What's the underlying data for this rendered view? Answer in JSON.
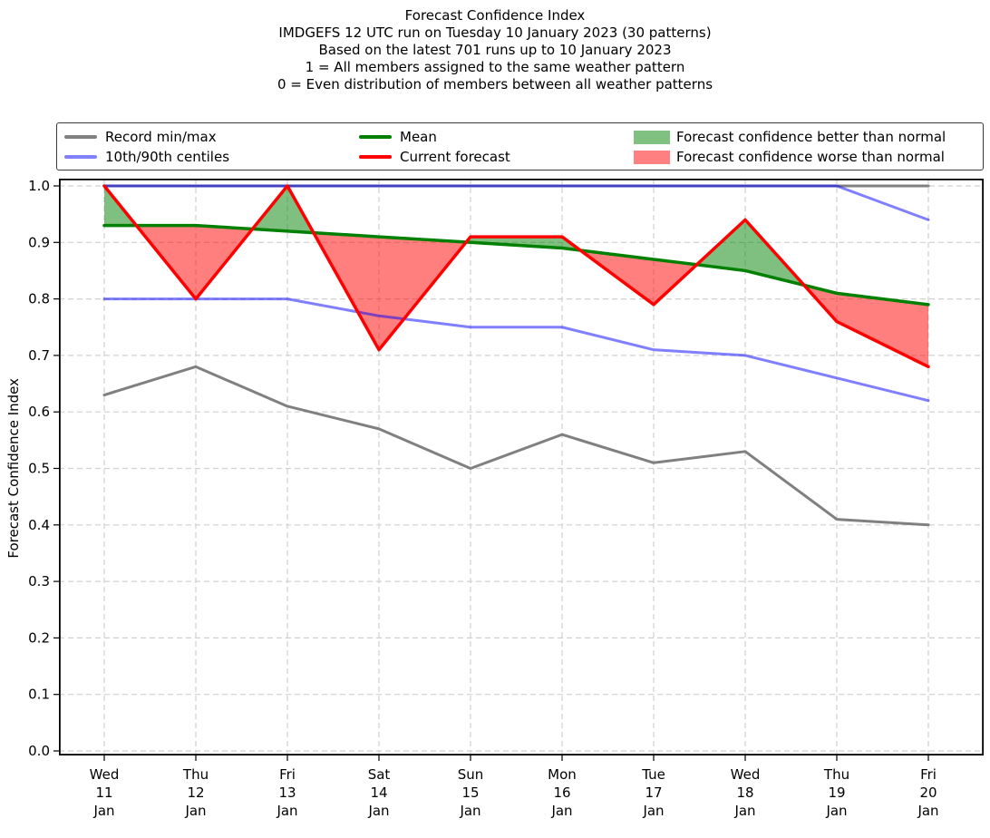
{
  "title": {
    "lines": [
      "Forecast Confidence Index",
      "IMDGEFS 12 UTC run on Tuesday 10 January 2023 (30 patterns)",
      "Based on the latest 701 runs up to 10 January 2023",
      "1 = All members assigned to the same weather pattern",
      "0 = Even distribution of members between all weather patterns"
    ]
  },
  "legend": {
    "entries": [
      {
        "label": "Record min/max",
        "swatch": "line",
        "color": "#808080"
      },
      {
        "label": "10th/90th centiles",
        "swatch": "line",
        "color": "#8080ff"
      },
      {
        "label": "Mean",
        "swatch": "line",
        "color": "#008000"
      },
      {
        "label": "Current forecast",
        "swatch": "line",
        "color": "#ff0000"
      },
      {
        "label": "Forecast confidence better than normal",
        "swatch": "patch",
        "color": "#80c080"
      },
      {
        "label": "Forecast confidence worse than normal",
        "swatch": "patch",
        "color": "#ff8080"
      }
    ]
  },
  "chart_data": {
    "type": "line",
    "title": "Forecast Confidence Index",
    "xlabel": "",
    "ylabel": "Forecast Confidence Index",
    "ylim": [
      0.0,
      1.0
    ],
    "yticks": [
      "0.0",
      "0.1",
      "0.2",
      "0.3",
      "0.4",
      "0.5",
      "0.6",
      "0.7",
      "0.8",
      "0.9",
      "1.0"
    ],
    "grid": true,
    "legend_position": "top",
    "categories": [
      {
        "weekday": "Wed",
        "day": "11",
        "month": "Jan"
      },
      {
        "weekday": "Thu",
        "day": "12",
        "month": "Jan"
      },
      {
        "weekday": "Fri",
        "day": "13",
        "month": "Jan"
      },
      {
        "weekday": "Sat",
        "day": "14",
        "month": "Jan"
      },
      {
        "weekday": "Sun",
        "day": "15",
        "month": "Jan"
      },
      {
        "weekday": "Mon",
        "day": "16",
        "month": "Jan"
      },
      {
        "weekday": "Tue",
        "day": "17",
        "month": "Jan"
      },
      {
        "weekday": "Wed",
        "day": "18",
        "month": "Jan"
      },
      {
        "weekday": "Thu",
        "day": "19",
        "month": "Jan"
      },
      {
        "weekday": "Fri",
        "day": "20",
        "month": "Jan"
      }
    ],
    "series": [
      {
        "name": "record_max",
        "label": "Record min/max",
        "color": "#808080",
        "width": 3,
        "values": [
          1.0,
          1.0,
          1.0,
          1.0,
          1.0,
          1.0,
          1.0,
          1.0,
          1.0,
          1.0
        ]
      },
      {
        "name": "record_min",
        "label": "Record min/max",
        "color": "#808080",
        "width": 3,
        "values": [
          0.63,
          0.68,
          0.61,
          0.57,
          0.5,
          0.56,
          0.51,
          0.53,
          0.41,
          0.4
        ]
      },
      {
        "name": "10th_centile",
        "label": "10th/90th centiles",
        "color": "rgba(0,0,255,0.5)",
        "width": 3,
        "values": [
          0.8,
          0.8,
          0.8,
          0.77,
          0.75,
          0.75,
          0.71,
          0.7,
          0.66,
          0.62
        ]
      },
      {
        "name": "90th_centile",
        "label": "10th/90th centiles",
        "color": "rgba(0,0,255,0.5)",
        "width": 3,
        "values": [
          1.0,
          1.0,
          1.0,
          1.0,
          1.0,
          1.0,
          1.0,
          1.0,
          1.0,
          0.94
        ]
      },
      {
        "name": "mean",
        "label": "Mean",
        "color": "#008000",
        "width": 3.5,
        "values": [
          0.93,
          0.93,
          0.92,
          0.91,
          0.9,
          0.89,
          0.87,
          0.85,
          0.81,
          0.79
        ]
      },
      {
        "name": "current_forecast",
        "label": "Current forecast",
        "color": "#ff0000",
        "width": 3.5,
        "values": [
          1.0,
          0.8,
          1.0,
          0.71,
          0.91,
          0.91,
          0.79,
          0.94,
          0.76,
          0.68
        ]
      }
    ],
    "fills": {
      "between": [
        "current_forecast",
        "mean"
      ],
      "better_color": "rgba(0,128,0,0.5)",
      "worse_color": "rgba(255,0,0,0.5)"
    }
  }
}
